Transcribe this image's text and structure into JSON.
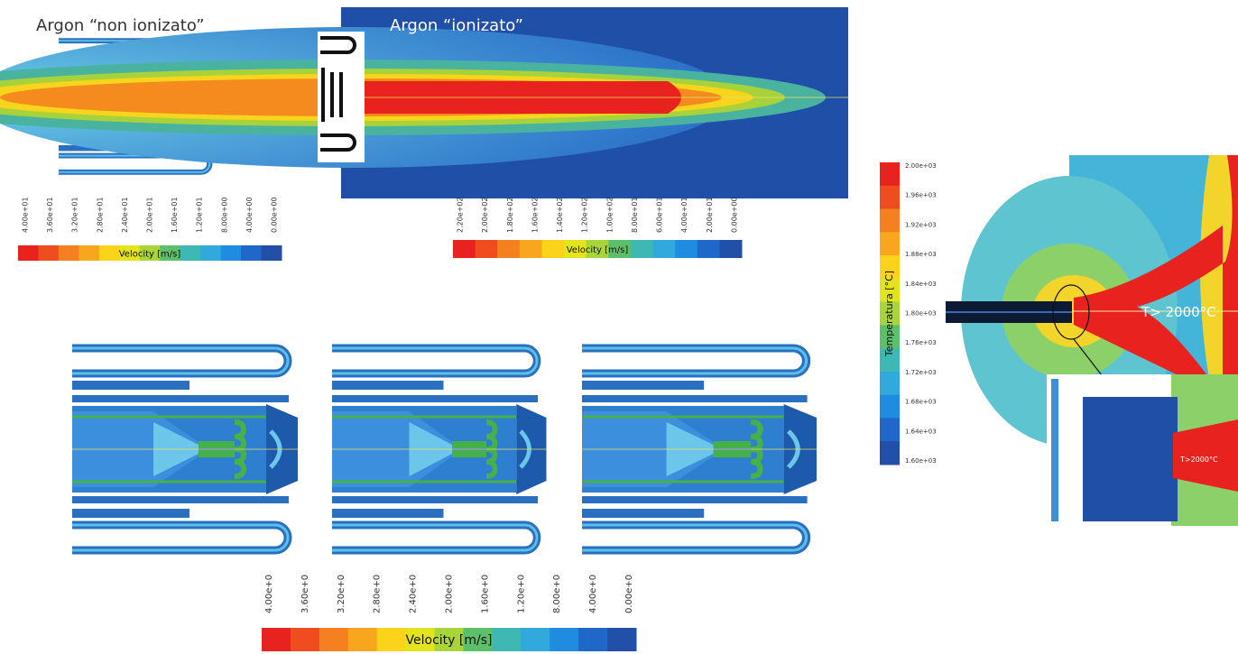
{
  "panels": {
    "non_ionized_title": "Argon “non ionizato”",
    "ionized_title": "Argon “ionizato”"
  },
  "colorbars": [
    {
      "label": "Velocity [m/s]",
      "ticks": [
        "4.00e+01",
        "3.60e+01",
        "3.20e+01",
        "2.80e+01",
        "2.40e+01",
        "2.00e+01",
        "1.60e+01",
        "1.20e+01",
        "8.00e+00",
        "4.00e+00",
        "0.00e+00"
      ]
    },
    {
      "label": "Velocity [m/s]",
      "ticks": [
        "2.20e+02",
        "2.00e+02",
        "1.80e+02",
        "1.60e+02",
        "1.40e+02",
        "1.20e+02",
        "1.00e+02",
        "8.00e+01",
        "6.00e+01",
        "4.00e+01",
        "2.00e+01",
        "0.00e+00"
      ]
    },
    {
      "label": "Velocity [m/s]",
      "ticks": [
        "4.00e+0",
        "3.60e+0",
        "3.20e+0",
        "2.80e+0",
        "2.40e+0",
        "2.00e+0",
        "1.60e+0",
        "1.20e+0",
        "8.00e+0",
        "4.00e+0",
        "0.00e+0"
      ]
    },
    {
      "label": "Temperatura [°C]",
      "ticks": [
        "2.00e+03",
        "1.96e+03",
        "1.92e+03",
        "1.88e+03",
        "1.84e+03",
        "1.80e+03",
        "1.76e+03",
        "1.72e+03",
        "1.68e+03",
        "1.64e+03",
        "1.60e+03"
      ]
    }
  ],
  "annotations": {
    "main": "T> 2000°C",
    "inset": "T>2000°C"
  }
}
